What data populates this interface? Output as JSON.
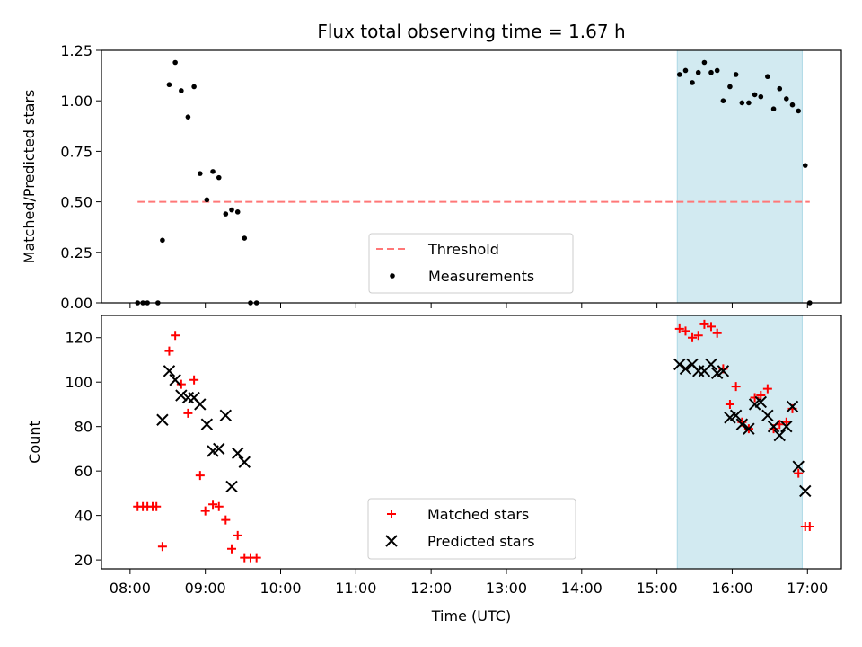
{
  "title": "Flux total observing time = 1.67 h",
  "chart_data": [
    {
      "type": "scatter",
      "panel": "top",
      "ylabel": "Matched/Predicted stars",
      "xlabel": "",
      "ylim": [
        0,
        1.25
      ],
      "yticks": [
        0.0,
        0.25,
        0.5,
        0.75,
        1.0,
        1.25
      ],
      "ytick_labels": [
        "0.00",
        "0.25",
        "0.50",
        "0.75",
        "1.00",
        "1.25"
      ],
      "xlim": [
        7.62,
        17.45
      ],
      "xticks": [
        8,
        9,
        10,
        11,
        12,
        13,
        14,
        15,
        16,
        17
      ],
      "highlight_span": {
        "x0": 15.27,
        "x1": 16.93,
        "color": "#add8e6"
      },
      "threshold": {
        "name": "Threshold",
        "value": 0.5,
        "x": [
          8.1,
          17.03
        ],
        "color": "#ff7777"
      },
      "legend_position": "bottom-center",
      "legend": [
        "Threshold",
        "Measurements"
      ],
      "series": [
        {
          "name": "Measurements",
          "color": "#000000",
          "marker": "dot",
          "x": [
            8.1,
            8.17,
            8.23,
            8.37,
            8.43,
            8.52,
            8.6,
            8.68,
            8.77,
            8.85,
            8.93,
            9.02,
            9.1,
            9.18,
            9.27,
            9.35,
            9.43,
            9.52,
            9.6,
            9.68,
            15.3,
            15.38,
            15.47,
            15.55,
            15.63,
            15.72,
            15.8,
            15.88,
            15.97,
            16.05,
            16.13,
            16.22,
            16.3,
            16.38,
            16.47,
            16.55,
            16.63,
            16.72,
            16.8,
            16.88,
            16.97,
            17.03
          ],
          "y": [
            0.0,
            0.0,
            0.0,
            0.0,
            0.31,
            1.08,
            1.19,
            1.05,
            0.92,
            1.07,
            0.64,
            0.51,
            0.65,
            0.62,
            0.44,
            0.46,
            0.45,
            0.32,
            0.0,
            0.0,
            1.13,
            1.15,
            1.09,
            1.14,
            1.19,
            1.14,
            1.15,
            1.0,
            1.07,
            1.13,
            0.99,
            0.99,
            1.03,
            1.02,
            1.12,
            0.96,
            1.06,
            1.01,
            0.98,
            0.95,
            0.68,
            0.0
          ]
        }
      ]
    },
    {
      "type": "scatter",
      "panel": "bottom",
      "ylabel": "Count",
      "xlabel": "Time (UTC)",
      "ylim": [
        16,
        130
      ],
      "yticks": [
        20,
        40,
        60,
        80,
        100,
        120
      ],
      "ytick_labels": [
        "20",
        "40",
        "60",
        "80",
        "100",
        "120"
      ],
      "xlim": [
        7.62,
        17.45
      ],
      "xticks": [
        8,
        9,
        10,
        11,
        12,
        13,
        14,
        15,
        16,
        17
      ],
      "xtick_labels": [
        "08:00",
        "09:00",
        "10:00",
        "11:00",
        "12:00",
        "13:00",
        "14:00",
        "15:00",
        "16:00",
        "17:00"
      ],
      "highlight_span": {
        "x0": 15.27,
        "x1": 16.93,
        "color": "#add8e6"
      },
      "legend_position": "bottom-center",
      "legend": [
        "Matched stars",
        "Predicted stars"
      ],
      "series": [
        {
          "name": "Matched stars",
          "color": "#ff0000",
          "marker": "plus",
          "x": [
            8.1,
            8.17,
            8.23,
            8.3,
            8.35,
            8.43,
            8.52,
            8.6,
            8.68,
            8.77,
            8.85,
            8.93,
            9.0,
            9.1,
            9.18,
            9.27,
            9.35,
            9.43,
            9.52,
            9.6,
            9.68,
            15.3,
            15.38,
            15.47,
            15.55,
            15.63,
            15.72,
            15.8,
            15.88,
            15.97,
            16.05,
            16.13,
            16.22,
            16.3,
            16.38,
            16.47,
            16.55,
            16.63,
            16.72,
            16.8,
            16.88,
            16.97,
            17.03
          ],
          "y": [
            44,
            44,
            44,
            44,
            44,
            26,
            114,
            121,
            99,
            86,
            101,
            58,
            42,
            45,
            44,
            38,
            25,
            31,
            21,
            21,
            21,
            124,
            123,
            120,
            121,
            126,
            125,
            122,
            106,
            90,
            98,
            82,
            79,
            93,
            94,
            97,
            79,
            81,
            82,
            88,
            59,
            35,
            35
          ]
        },
        {
          "name": "Predicted stars",
          "color": "#000000",
          "marker": "x",
          "x": [
            8.43,
            8.52,
            8.6,
            8.68,
            8.77,
            8.85,
            8.93,
            9.02,
            9.1,
            9.18,
            9.27,
            9.35,
            9.43,
            9.52,
            15.3,
            15.38,
            15.47,
            15.55,
            15.63,
            15.72,
            15.8,
            15.88,
            15.97,
            16.05,
            16.13,
            16.22,
            16.3,
            16.38,
            16.47,
            16.55,
            16.63,
            16.72,
            16.8,
            16.88,
            16.97
          ],
          "y": [
            83,
            105,
            101,
            94,
            93,
            93,
            90,
            81,
            69,
            70,
            85,
            53,
            68,
            64,
            108,
            106,
            108,
            105,
            105,
            108,
            104,
            105,
            84,
            85,
            81,
            79,
            90,
            91,
            85,
            80,
            76,
            80,
            89,
            62,
            51
          ]
        }
      ]
    }
  ]
}
